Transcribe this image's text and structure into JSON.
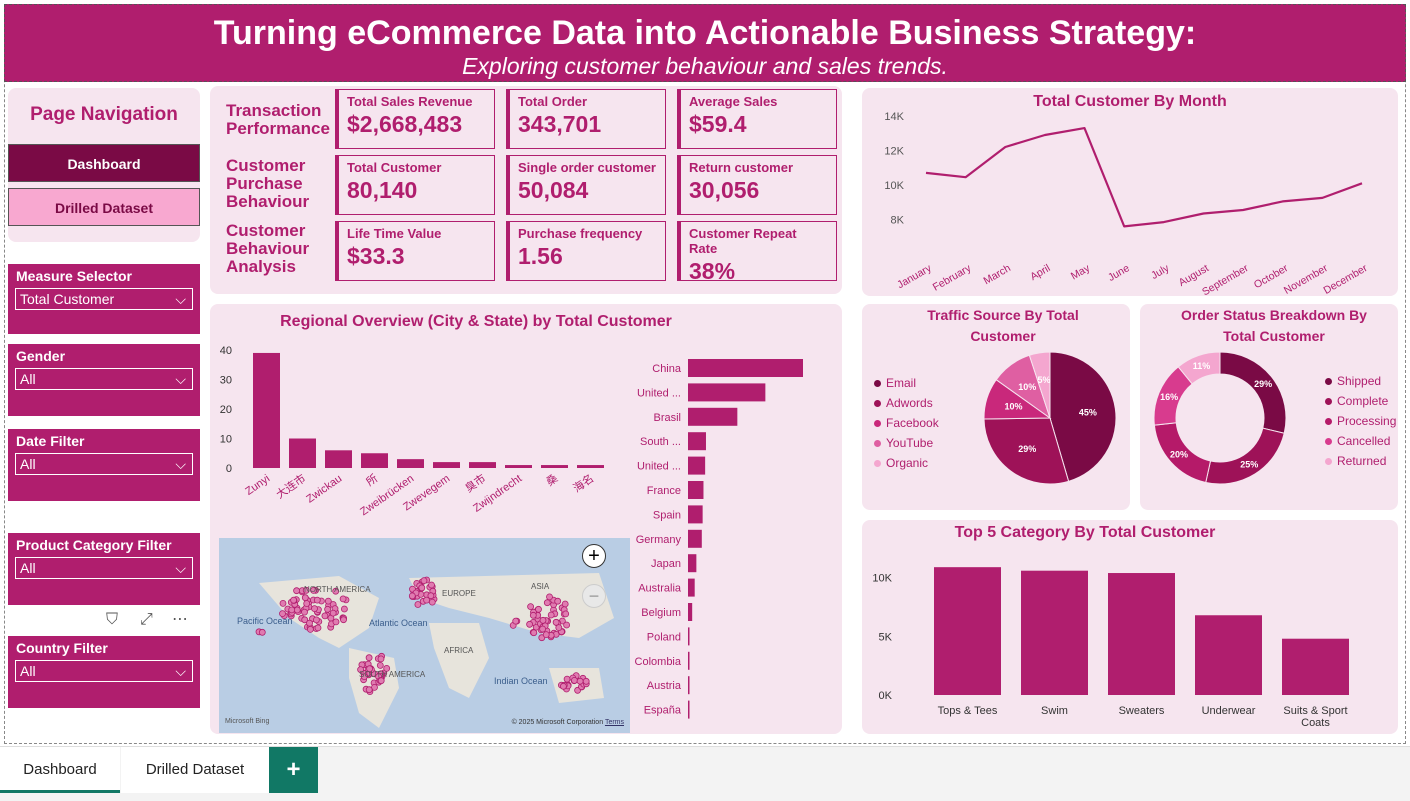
{
  "banner": {
    "title": "Turning eCommerce Data into Actionable Business Strategy:",
    "subtitle": "Exploring customer behaviour and sales trends."
  },
  "nav": {
    "title": "Page Navigation",
    "dashboard": "Dashboard",
    "drilled": "Drilled Dataset"
  },
  "slicers": [
    {
      "label": "Measure Selector",
      "value": "Total Customer"
    },
    {
      "label": "Gender",
      "value": "All"
    },
    {
      "label": "Date Filter",
      "value": "All"
    },
    {
      "label": "Product Category Filter",
      "value": "All"
    },
    {
      "label": "Country Filter",
      "value": "All"
    }
  ],
  "kpi_rows": [
    {
      "title": "Transaction Performance",
      "cards": [
        {
          "label": "Total Sales Revenue",
          "value": "$2,668,483"
        },
        {
          "label": "Total Order",
          "value": "343,701"
        },
        {
          "label": "Average Sales",
          "value": "$59.4"
        }
      ]
    },
    {
      "title": "Customer Purchase Behaviour",
      "cards": [
        {
          "label": "Total Customer",
          "value": "80,140"
        },
        {
          "label": "Single order customer",
          "value": "50,084"
        },
        {
          "label": "Return customer",
          "value": "30,056"
        }
      ]
    },
    {
      "title": "Customer Behaviour Analysis",
      "cards": [
        {
          "label": "Life Time Value",
          "value": "$33.3"
        },
        {
          "label": "Purchase frequency",
          "value": "1.56"
        },
        {
          "label": "Customer Repeat Rate",
          "value": "38%"
        }
      ]
    }
  ],
  "colors": {
    "accent": "#b01e6e",
    "panel": "#f6e5ef",
    "dark": "#7a0a45",
    "pink": "#f8a8d0"
  },
  "chart_data": [
    {
      "type": "line",
      "title": "Total Customer By Month",
      "x": [
        "January",
        "February",
        "March",
        "April",
        "May",
        "June",
        "July",
        "August",
        "September",
        "October",
        "November",
        "December"
      ],
      "values": [
        10700,
        10450,
        12200,
        12900,
        13300,
        7600,
        7850,
        8350,
        8550,
        9050,
        9250,
        10100
      ],
      "ylim": [
        6000,
        14000
      ],
      "yticks": [
        "8K",
        "10K",
        "12K",
        "14K"
      ]
    },
    {
      "type": "bar",
      "title": "Regional Overview (City & State) by Total Customer",
      "categories": [
        "Zunyi",
        "大连市",
        "Zwickau",
        "所",
        "Zweibrücken",
        "Zwevegem",
        "臭市",
        "Zwijndrecht",
        "桑",
        "海名"
      ],
      "values": [
        39,
        10,
        6,
        5,
        3,
        2,
        2,
        1,
        1,
        1
      ],
      "ylim": [
        0,
        40
      ],
      "yticks": [
        "0",
        "10",
        "20",
        "30",
        "40"
      ]
    },
    {
      "type": "bar",
      "orientation": "horizontal",
      "categories": [
        "China",
        "United ...",
        "Brasil",
        "South ...",
        "United ...",
        "France",
        "Spain",
        "Germany",
        "Japan",
        "Australia",
        "Belgium",
        "Poland",
        "Colombia",
        "Austria",
        "España"
      ],
      "values": [
        27500,
        18500,
        11800,
        4300,
        4100,
        3700,
        3500,
        3300,
        2000,
        1600,
        1000,
        300,
        300,
        200,
        200
      ]
    },
    {
      "type": "pie",
      "title": "Traffic Source By Total Customer",
      "categories": [
        "Email",
        "Adwords",
        "Facebook",
        "YouTube",
        "Organic"
      ],
      "values": [
        45,
        29,
        10,
        10,
        5
      ],
      "labels": [
        "45%",
        "29%",
        "10%",
        "10%",
        "5%"
      ]
    },
    {
      "type": "pie",
      "donut": true,
      "title": "Order Status Breakdown By Total Customer",
      "categories": [
        "Shipped",
        "Complete",
        "Processing",
        "Cancelled",
        "Returned"
      ],
      "values": [
        29,
        25,
        20,
        16,
        11
      ],
      "labels": [
        "29%",
        "25%",
        "20%",
        "16%",
        "11%"
      ]
    },
    {
      "type": "bar",
      "title": "Top 5 Category By Total Customer",
      "categories": [
        "Tops & Tees",
        "Swim",
        "Sweaters",
        "Underwear",
        "Suits & Sport Coats"
      ],
      "values": [
        10900,
        10600,
        10400,
        6800,
        4800
      ],
      "ylim": [
        0,
        11000
      ],
      "yticks": [
        "0K",
        "5K",
        "10K"
      ]
    }
  ],
  "map": {
    "labels": [
      "NORTH AMERICA",
      "EUROPE",
      "ASIA",
      "AFRICA",
      "SOUTH AMERICA",
      "Pacific Ocean",
      "Atlantic Ocean",
      "Indian Ocean"
    ],
    "credit": "© 2025 Microsoft Corporation",
    "terms": "Terms",
    "brand": "Microsoft Bing"
  },
  "tabs": {
    "dashboard": "Dashboard",
    "drilled": "Drilled Dataset",
    "add": "+"
  }
}
